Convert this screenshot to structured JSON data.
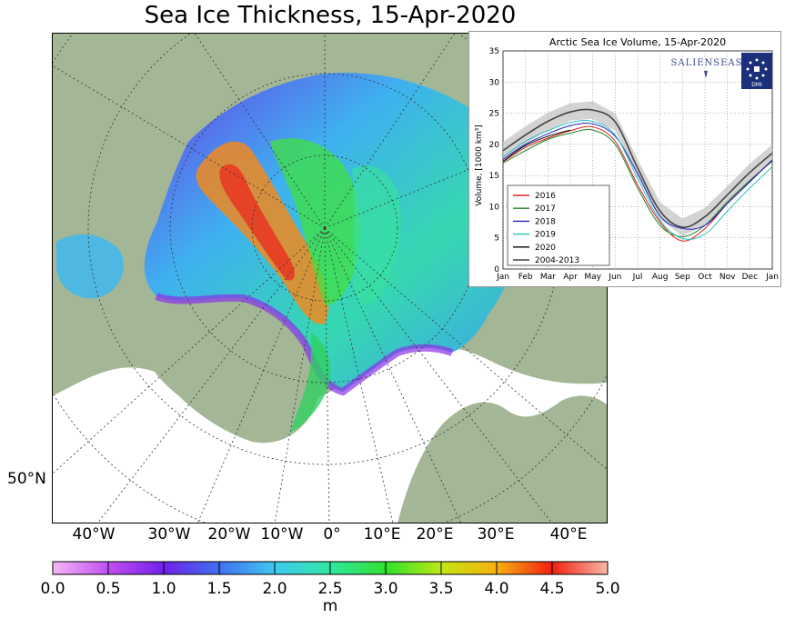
{
  "title": "Sea Ice Thickness, 15-Apr-2020",
  "map": {
    "lon_labels": [
      "40°W",
      "30°W",
      "20°W",
      "10°W",
      "0°",
      "10°E",
      "20°E",
      "30°E",
      "40°E"
    ],
    "lat_labels": [
      "50°N"
    ],
    "colors": {
      "land": "#a3b796",
      "ocean": "#ffffff",
      "grid": "#333333"
    }
  },
  "colorbar": {
    "ticks": [
      "0.0",
      "0.5",
      "1.0",
      "1.5",
      "2.0",
      "2.5",
      "3.0",
      "3.5",
      "4.0",
      "4.5",
      "5.0"
    ],
    "unit": "m",
    "range": [
      0,
      5
    ],
    "colors": [
      "#f5b8f5",
      "#c050f0",
      "#7020e8",
      "#4070f0",
      "#40c8f0",
      "#30e8a0",
      "#30e030",
      "#c0e810",
      "#f8b010",
      "#f02010",
      "#f8b8a8"
    ]
  },
  "chart_data": {
    "type": "line",
    "title": "Arctic Sea Ice Volume, 15-Apr-2020",
    "ylabel": "Volume, [1000 km³]",
    "xlabel": "",
    "categories": [
      "Jan",
      "Feb",
      "Mar",
      "Apr",
      "May",
      "Jun",
      "Jul",
      "Aug",
      "Sep",
      "Oct",
      "Nov",
      "Dec",
      "Jan"
    ],
    "x": [
      0,
      1,
      2,
      3,
      4,
      5,
      6,
      7,
      8,
      9,
      10,
      11,
      12
    ],
    "ylim": [
      0,
      35
    ],
    "yticks": [
      "0",
      "5",
      "10",
      "15",
      "20",
      "25",
      "30",
      "35"
    ],
    "grid": true,
    "legend": "bottom-left",
    "logo_text": "SALIENSEAS",
    "badge_text": "DMI",
    "series": [
      {
        "name": "2016",
        "color": "#e02020",
        "values": [
          17.2,
          19.5,
          21.0,
          22.2,
          22.8,
          20.5,
          13.5,
          7.5,
          4.5,
          6.5,
          10.5,
          14.0,
          17.5
        ]
      },
      {
        "name": "2017",
        "color": "#208020",
        "values": [
          17.0,
          19.0,
          20.8,
          21.8,
          22.3,
          20.0,
          13.0,
          7.0,
          5.2,
          7.0,
          10.8,
          14.2,
          17.3
        ]
      },
      {
        "name": "2018",
        "color": "#2020c0",
        "values": [
          17.6,
          20.0,
          21.7,
          23.0,
          23.3,
          21.3,
          15.3,
          8.5,
          6.5,
          7.0,
          10.5,
          14.0,
          17.5
        ]
      },
      {
        "name": "2019",
        "color": "#30c0c0",
        "values": [
          18.0,
          20.5,
          22.2,
          23.5,
          23.7,
          21.5,
          14.5,
          7.8,
          4.9,
          5.6,
          9.3,
          13.0,
          16.4
        ]
      },
      {
        "name": "2020",
        "color": "#000000",
        "values": [
          17.3,
          19.8,
          21.3,
          22.3,
          null,
          null,
          null,
          null,
          null,
          null,
          null,
          null,
          null
        ]
      },
      {
        "name": "2004-2013",
        "color": "#444444",
        "values": [
          19.0,
          21.5,
          23.7,
          25.2,
          25.5,
          23.6,
          16.2,
          9.3,
          6.7,
          8.4,
          11.9,
          15.5,
          18.6
        ]
      }
    ],
    "band_halfwidth": 1.4
  }
}
